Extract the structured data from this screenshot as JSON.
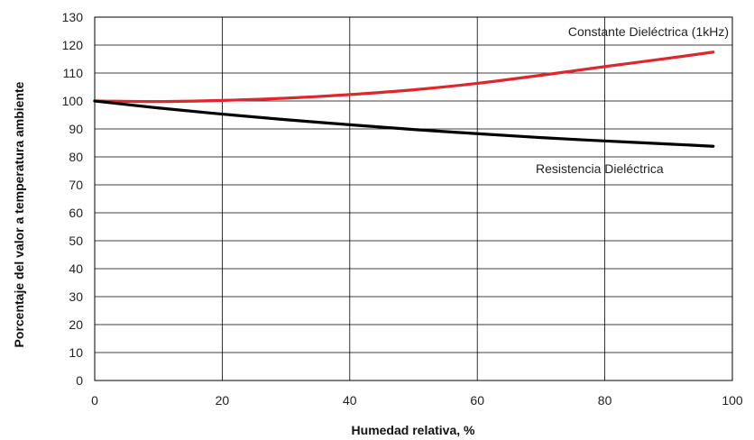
{
  "chart_data": {
    "type": "line",
    "title": "",
    "xlabel": "Humedad relativa, %",
    "ylabel": "Porcentaje del valor a temperatura ambiente",
    "xlim": [
      0,
      100
    ],
    "ylim": [
      0,
      130
    ],
    "xticks": [
      0,
      20,
      40,
      60,
      80,
      100
    ],
    "yticks": [
      0,
      10,
      20,
      30,
      40,
      50,
      60,
      70,
      80,
      90,
      100,
      110,
      120,
      130
    ],
    "grid": true,
    "series": [
      {
        "name": "Constante Dieléctrica (1kHz)",
        "color": "#e0262b",
        "x": [
          0,
          10,
          20,
          30,
          40,
          50,
          60,
          70,
          80,
          90,
          97
        ],
        "y": [
          100,
          99.8,
          100.2,
          101,
          102.3,
          104,
          106.3,
          109.2,
          112.3,
          115.3,
          117.5
        ]
      },
      {
        "name": "Resistencia Dieléctrica",
        "color": "#000000",
        "x": [
          0,
          10,
          20,
          30,
          40,
          50,
          60,
          70,
          80,
          90,
          97
        ],
        "y": [
          100,
          97.5,
          95.3,
          93.3,
          91.5,
          89.8,
          88.3,
          86.9,
          85.7,
          84.6,
          83.8
        ]
      }
    ]
  }
}
